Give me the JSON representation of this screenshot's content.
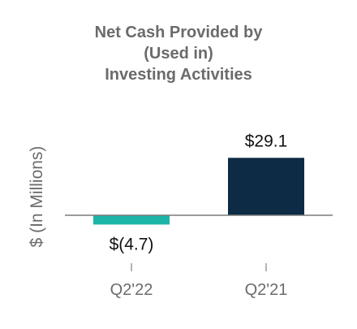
{
  "chart_data": {
    "type": "bar",
    "title_lines": [
      "Net Cash Provided by",
      "(Used in)",
      "Investing Activities"
    ],
    "xlabel": "",
    "ylabel": "$ (In Millions)",
    "categories": [
      "Q2'22",
      "Q2'21"
    ],
    "values": [
      -4.7,
      29.1
    ],
    "data_labels": [
      "$(4.7)",
      "$29.1"
    ],
    "colors": [
      "#1BB5A7",
      "#0D2B45"
    ],
    "ylim": [
      -6,
      35
    ],
    "grid": false,
    "legend": "none"
  },
  "colors": {
    "axis": "#7a7a7a",
    "tick": "#9a9a9a"
  }
}
